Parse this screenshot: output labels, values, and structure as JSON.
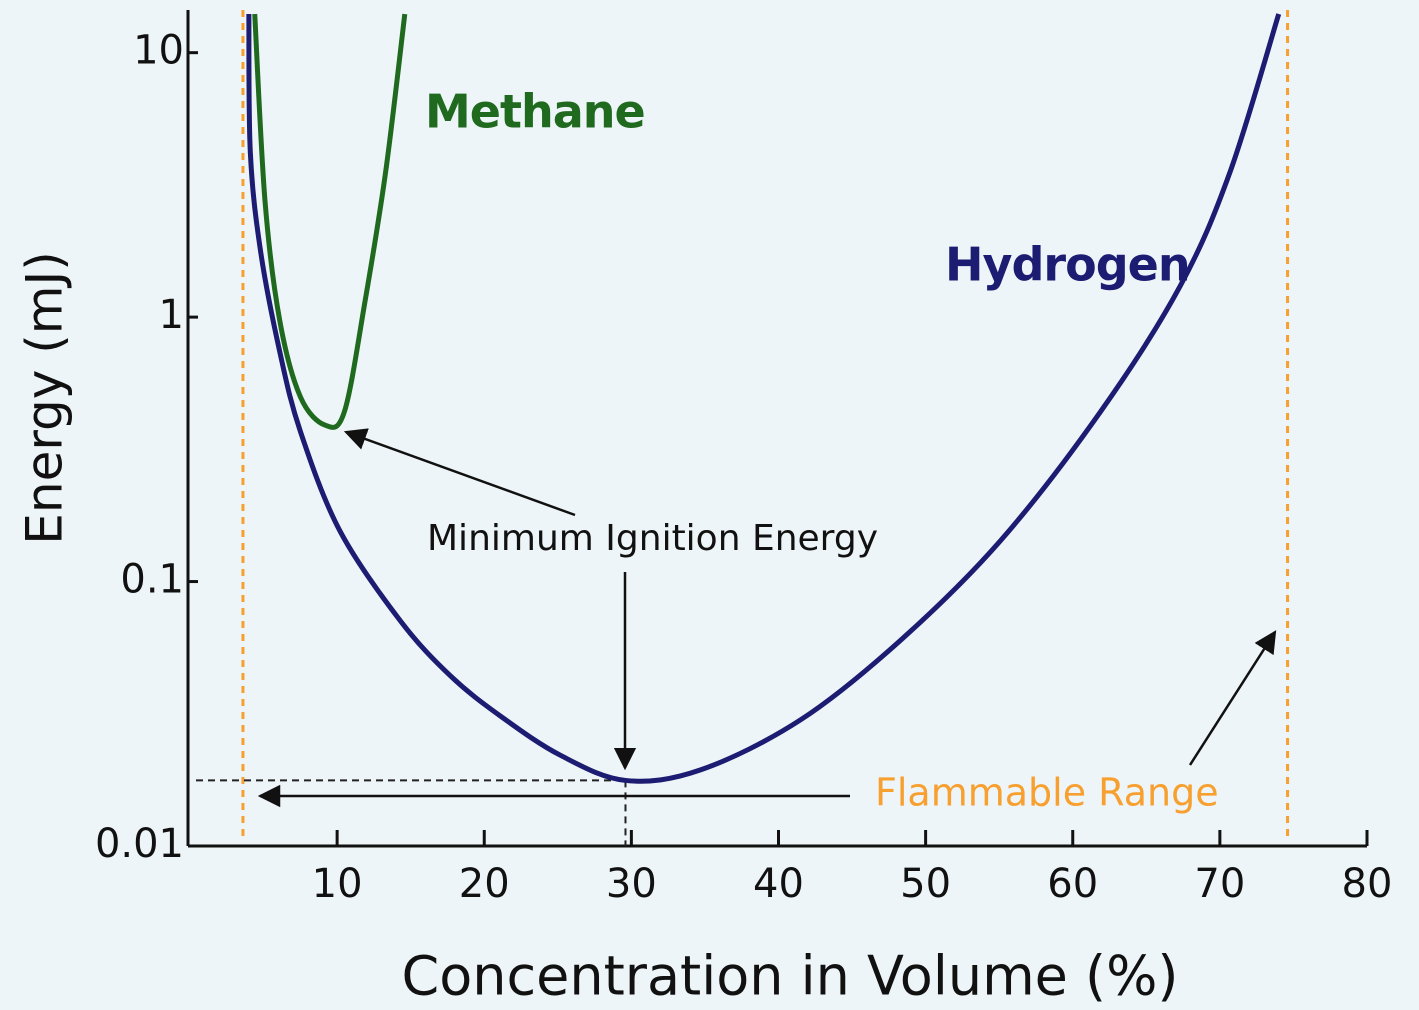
{
  "chart_data": {
    "type": "line",
    "xlabel": "Concentration in Volume (%)",
    "ylabel": "Energy (mJ)",
    "yscale": "log",
    "xlim": [
      0,
      80
    ],
    "xticks": [
      10,
      20,
      30,
      40,
      50,
      60,
      70,
      80
    ],
    "ylim": [
      0.01,
      14.5
    ],
    "yticks": [
      0.01,
      0.1,
      1,
      10
    ],
    "series": [
      {
        "name": "Hydrogen",
        "color": "#1c1c72",
        "x": [
          4.0,
          4.1,
          4.8,
          6.1,
          7.5,
          10.2,
          14.3,
          17.7,
          21.1,
          25.2,
          29.6,
          34.7,
          41.5,
          48.3,
          55.1,
          61.9,
          67.3,
          70.7,
          74.0
        ],
        "values": [
          14,
          4.2,
          1.77,
          0.74,
          0.37,
          0.155,
          0.071,
          0.044,
          0.031,
          0.022,
          0.0177,
          0.0194,
          0.03,
          0.06,
          0.143,
          0.44,
          1.31,
          3.55,
          14.0
        ]
      },
      {
        "name": "Methane",
        "color": "#1f6a1f",
        "x": [
          4.4,
          5.1,
          6.1,
          7.5,
          9.2,
          10.5,
          11.9,
          13.3,
          14.6
        ],
        "values": [
          14,
          2.74,
          0.97,
          0.5,
          0.39,
          0.44,
          1.15,
          3.55,
          14
        ]
      }
    ],
    "annotations": {
      "minimum": "Minimum Ignition Energy",
      "flammable": "Flammable Range"
    },
    "flammable_range": [
      3.6,
      74.6
    ],
    "flammable_color": "#f7a030"
  }
}
